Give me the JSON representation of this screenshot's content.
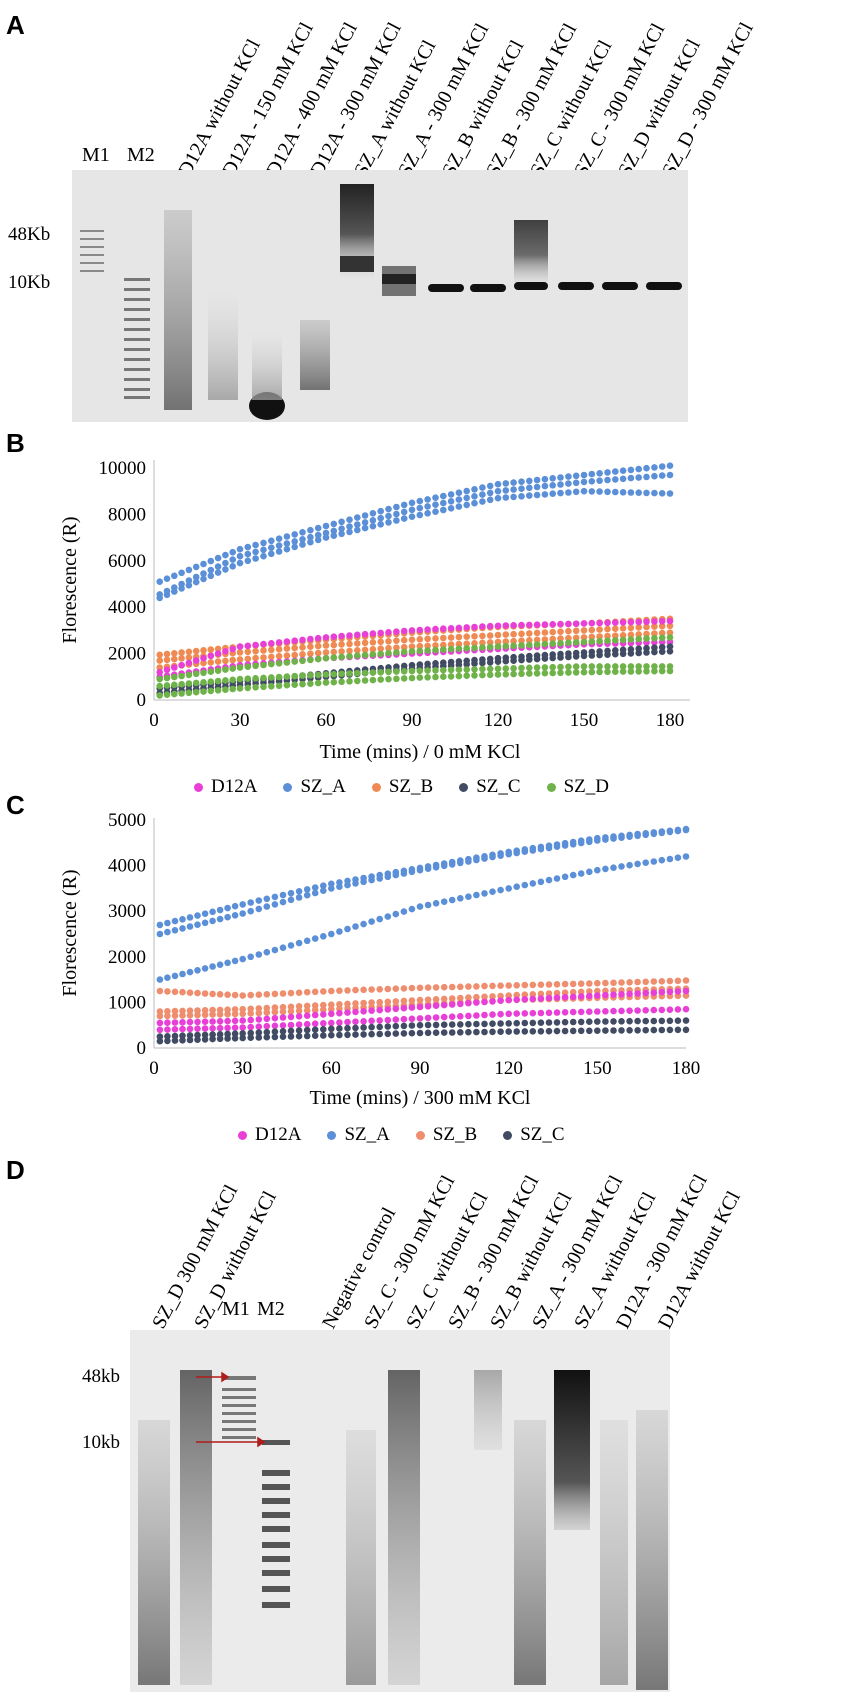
{
  "panels": {
    "a": "A",
    "b": "B",
    "c": "C",
    "d": "D"
  },
  "gel_a": {
    "markers": [
      "M1",
      "M2"
    ],
    "lanes": [
      "D12A without KCl",
      "D12A - 150 mM KCl",
      "D12A - 400 mM KCl",
      "D12A - 300 mM KCl",
      "SZ_A without KCl",
      "SZ_A - 300 mM KCl",
      "SZ_B without KCl",
      "SZ_B - 300 mM KCl",
      "SZ_C without KCl",
      "SZ_C - 300 mM KCl",
      "SZ_D without KCl",
      "SZ_D - 300 mM KCl"
    ],
    "sizes": [
      "48Kb",
      "10Kb"
    ]
  },
  "gel_d": {
    "lanes_left": [
      "SZ_D 300 mM KCl",
      "SZ_D without KCl"
    ],
    "markers": [
      "M1",
      "M2"
    ],
    "lanes_right": [
      "Negative control",
      "SZ_C - 300 mM KCl",
      "SZ_C without KCl",
      "SZ_B - 300 mM KCl",
      "SZ_B without KCl",
      "SZ_A - 300 mM KCl",
      "SZ_A without KCl",
      "D12A - 300 mM KCl",
      "D12A without KCl"
    ],
    "sizes": [
      "48kb",
      "10kb"
    ]
  },
  "colors": {
    "D12A": "#e83fd6",
    "SZ_A": "#5b8fd8",
    "SZ_B": "#ee8a52",
    "SZ_C": "#414b63",
    "SZ_D": "#6fb24a",
    "SZ_B_C": "#ee8e6e"
  },
  "chart_data": [
    {
      "type": "scatter",
      "title": "",
      "xlabel": "Time  (mins)  / 0 mM KCl",
      "ylabel": "Florescence  (R)",
      "xlim": [
        0,
        180
      ],
      "ylim": [
        0,
        10000
      ],
      "xticks": [
        0,
        30,
        60,
        90,
        120,
        150,
        180
      ],
      "yticks": [
        0,
        2000,
        4000,
        6000,
        8000,
        10000
      ],
      "legend": [
        "D12A",
        "SZ_A",
        "SZ_B",
        "SZ_C",
        "SZ_D"
      ],
      "series": [
        {
          "name": "SZ_A",
          "color": "#5b8fd8",
          "x": [
            2,
            30,
            60,
            90,
            120,
            150,
            180
          ],
          "y": [
            5100,
            6500,
            7500,
            8500,
            9300,
            9700,
            10100
          ]
        },
        {
          "name": "SZ_A",
          "color": "#5b8fd8",
          "x": [
            2,
            30,
            60,
            90,
            120,
            150,
            180
          ],
          "y": [
            4550,
            6200,
            7200,
            8200,
            9000,
            9400,
            9700
          ]
        },
        {
          "name": "SZ_A",
          "color": "#5b8fd8",
          "x": [
            2,
            30,
            60,
            90,
            120,
            150,
            180
          ],
          "y": [
            4400,
            5900,
            7000,
            7900,
            8700,
            9000,
            8900
          ]
        },
        {
          "name": "SZ_B",
          "color": "#ee8a52",
          "x": [
            2,
            30,
            60,
            90,
            120,
            150,
            180
          ],
          "y": [
            1950,
            2300,
            2600,
            2900,
            3150,
            3300,
            3500
          ]
        },
        {
          "name": "SZ_B",
          "color": "#ee8a52",
          "x": [
            2,
            30,
            60,
            90,
            120,
            150,
            180
          ],
          "y": [
            1700,
            2050,
            2350,
            2600,
            2800,
            3000,
            3200
          ]
        },
        {
          "name": "SZ_B",
          "color": "#ee8a52",
          "x": [
            2,
            30,
            60,
            90,
            120,
            150,
            180
          ],
          "y": [
            1400,
            1750,
            2050,
            2300,
            2500,
            2700,
            2900
          ]
        },
        {
          "name": "D12A",
          "color": "#e83fd6",
          "x": [
            2,
            30,
            60,
            90,
            120,
            150,
            180
          ],
          "y": [
            1200,
            2300,
            2700,
            3000,
            3200,
            3300,
            3400
          ]
        },
        {
          "name": "D12A",
          "color": "#e83fd6",
          "x": [
            2,
            30,
            60,
            90,
            120,
            150,
            180
          ],
          "y": [
            1000,
            1500,
            1800,
            2000,
            2200,
            2400,
            2500
          ]
        },
        {
          "name": "SZ_C",
          "color": "#414b63",
          "x": [
            2,
            30,
            60,
            90,
            120,
            150,
            180
          ],
          "y": [
            500,
            800,
            1150,
            1500,
            1800,
            2050,
            2300
          ]
        },
        {
          "name": "SZ_C",
          "color": "#414b63",
          "x": [
            2,
            30,
            60,
            90,
            120,
            150,
            180
          ],
          "y": [
            300,
            650,
            1000,
            1350,
            1650,
            1900,
            2100
          ]
        },
        {
          "name": "SZ_D",
          "color": "#6fb24a",
          "x": [
            2,
            30,
            60,
            90,
            120,
            150,
            180
          ],
          "y": [
            900,
            1400,
            1800,
            2100,
            2300,
            2500,
            2700
          ]
        },
        {
          "name": "SZ_D",
          "color": "#6fb24a",
          "x": [
            2,
            30,
            60,
            90,
            120,
            150,
            180
          ],
          "y": [
            600,
            900,
            1100,
            1250,
            1350,
            1450,
            1450
          ]
        },
        {
          "name": "SZ_D",
          "color": "#6fb24a",
          "x": [
            2,
            30,
            60,
            90,
            120,
            150,
            180
          ],
          "y": [
            200,
            500,
            750,
            950,
            1100,
            1200,
            1250
          ]
        }
      ]
    },
    {
      "type": "scatter",
      "title": "",
      "xlabel": "Time  (mins)  / 300 mM KCl",
      "ylabel": "Florescence  (R)",
      "xlim": [
        0,
        180
      ],
      "ylim": [
        0,
        5000
      ],
      "xticks": [
        0,
        30,
        60,
        90,
        120,
        150,
        180
      ],
      "yticks": [
        0,
        1000,
        2000,
        3000,
        4000,
        5000
      ],
      "legend": [
        "D12A",
        "SZ_A",
        "SZ_B",
        "SZ_C"
      ],
      "series": [
        {
          "name": "SZ_A",
          "color": "#5b8fd8",
          "x": [
            2,
            30,
            60,
            90,
            120,
            150,
            180
          ],
          "y": [
            2700,
            3150,
            3600,
            3950,
            4300,
            4600,
            4800
          ]
        },
        {
          "name": "SZ_A",
          "color": "#5b8fd8",
          "x": [
            2,
            30,
            60,
            90,
            120,
            150,
            180
          ],
          "y": [
            2500,
            2950,
            3500,
            3900,
            4250,
            4550,
            4780
          ]
        },
        {
          "name": "SZ_A",
          "color": "#5b8fd8",
          "x": [
            2,
            30,
            60,
            90,
            120,
            150,
            180
          ],
          "y": [
            1500,
            1950,
            2500,
            3100,
            3500,
            3900,
            4200
          ]
        },
        {
          "name": "SZ_B",
          "color": "#ee8e6e",
          "x": [
            2,
            30,
            60,
            90,
            120,
            150,
            180
          ],
          "y": [
            1250,
            1150,
            1250,
            1320,
            1370,
            1420,
            1480
          ]
        },
        {
          "name": "SZ_B",
          "color": "#ee8e6e",
          "x": [
            2,
            30,
            60,
            90,
            120,
            150,
            180
          ],
          "y": [
            800,
            850,
            950,
            1050,
            1150,
            1250,
            1300
          ]
        },
        {
          "name": "SZ_B",
          "color": "#ee8e6e",
          "x": [
            2,
            30,
            60,
            90,
            120,
            150,
            180
          ],
          "y": [
            700,
            750,
            850,
            950,
            1050,
            1100,
            1150
          ]
        },
        {
          "name": "D12A",
          "color": "#e83fd6",
          "x": [
            2,
            30,
            60,
            90,
            120,
            150,
            180
          ],
          "y": [
            550,
            600,
            750,
            900,
            1050,
            1150,
            1250
          ]
        },
        {
          "name": "D12A",
          "color": "#e83fd6",
          "x": [
            2,
            30,
            60,
            90,
            120,
            150,
            180
          ],
          "y": [
            400,
            450,
            550,
            650,
            750,
            800,
            850
          ]
        },
        {
          "name": "SZ_C",
          "color": "#414b63",
          "x": [
            2,
            30,
            60,
            90,
            120,
            150,
            180
          ],
          "y": [
            250,
            320,
            420,
            500,
            540,
            580,
            600
          ]
        },
        {
          "name": "SZ_C",
          "color": "#414b63",
          "x": [
            2,
            30,
            60,
            90,
            120,
            150,
            180
          ],
          "y": [
            150,
            220,
            280,
            330,
            360,
            380,
            400
          ]
        }
      ]
    }
  ]
}
